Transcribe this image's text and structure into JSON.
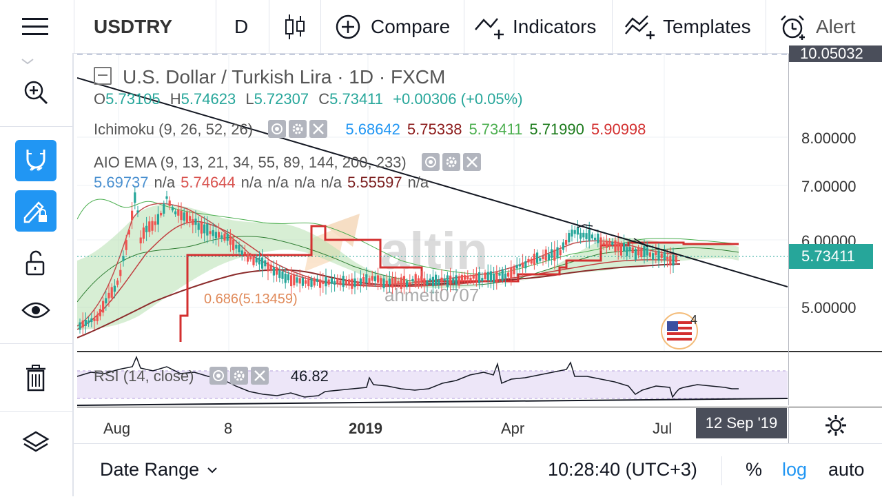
{
  "toolbar": {
    "symbol": "USDTRY",
    "interval": "D",
    "compare_label": "Compare",
    "indicators_label": "Indicators",
    "templates_label": "Templates",
    "alert_label": "Alert"
  },
  "legend": {
    "title": "U.S. Dollar / Turkish Lira · 1D · FXCM",
    "o_label": "O",
    "o_value": "5.73105",
    "h_label": "H",
    "h_value": "5.74623",
    "l_label": "L",
    "l_value": "5.72307",
    "c_label": "C",
    "c_value": "5.73411",
    "change": "+0.00306 (+0.05%)",
    "ichimoku_name": "Ichimoku (9, 26, 52, 26)",
    "ichimoku_values": [
      "5.68642",
      "5.75338",
      "5.73411",
      "5.71990",
      "5.90998"
    ],
    "ichimoku_colors": [
      "#2196f3",
      "#8b1a1a",
      "#4caf50",
      "#1b7a1b",
      "#d32f2f"
    ],
    "ema_name": "AIO EMA (9, 13, 21, 34, 55, 89, 144, 200, 233)",
    "ema_values": [
      "5.69737",
      "n/a",
      "5.74644",
      "n/a",
      "n/a",
      "n/a",
      "n/a",
      "5.55597",
      "n/a"
    ],
    "rsi_name": "RSI (14, close)",
    "rsi_value": "46.82"
  },
  "price_scale": {
    "top_partial": "10.05032",
    "ticks": [
      "8.00000",
      "7.00000",
      "6.00000",
      "5.00000"
    ],
    "current_price": "5.73411"
  },
  "time_axis": {
    "labels": [
      "Aug",
      "8",
      "2019",
      "Apr",
      "Jul"
    ],
    "crosshair_date": "12 Sep '19"
  },
  "chart_overlay": {
    "label_value": "(5.13459)",
    "label_garbled": "0.686",
    "watermark": "altin",
    "author": "ahmett0707",
    "event_count": "4"
  },
  "bottom": {
    "date_range_label": "Date Range",
    "time": "10:28:40 (UTC+3)",
    "percent_label": "%",
    "log_label": "log",
    "auto_label": "auto"
  },
  "colors": {
    "accent": "#2196f3",
    "current_price_bg": "#26a69a",
    "up": "#26a69a",
    "down": "#ef5350"
  }
}
